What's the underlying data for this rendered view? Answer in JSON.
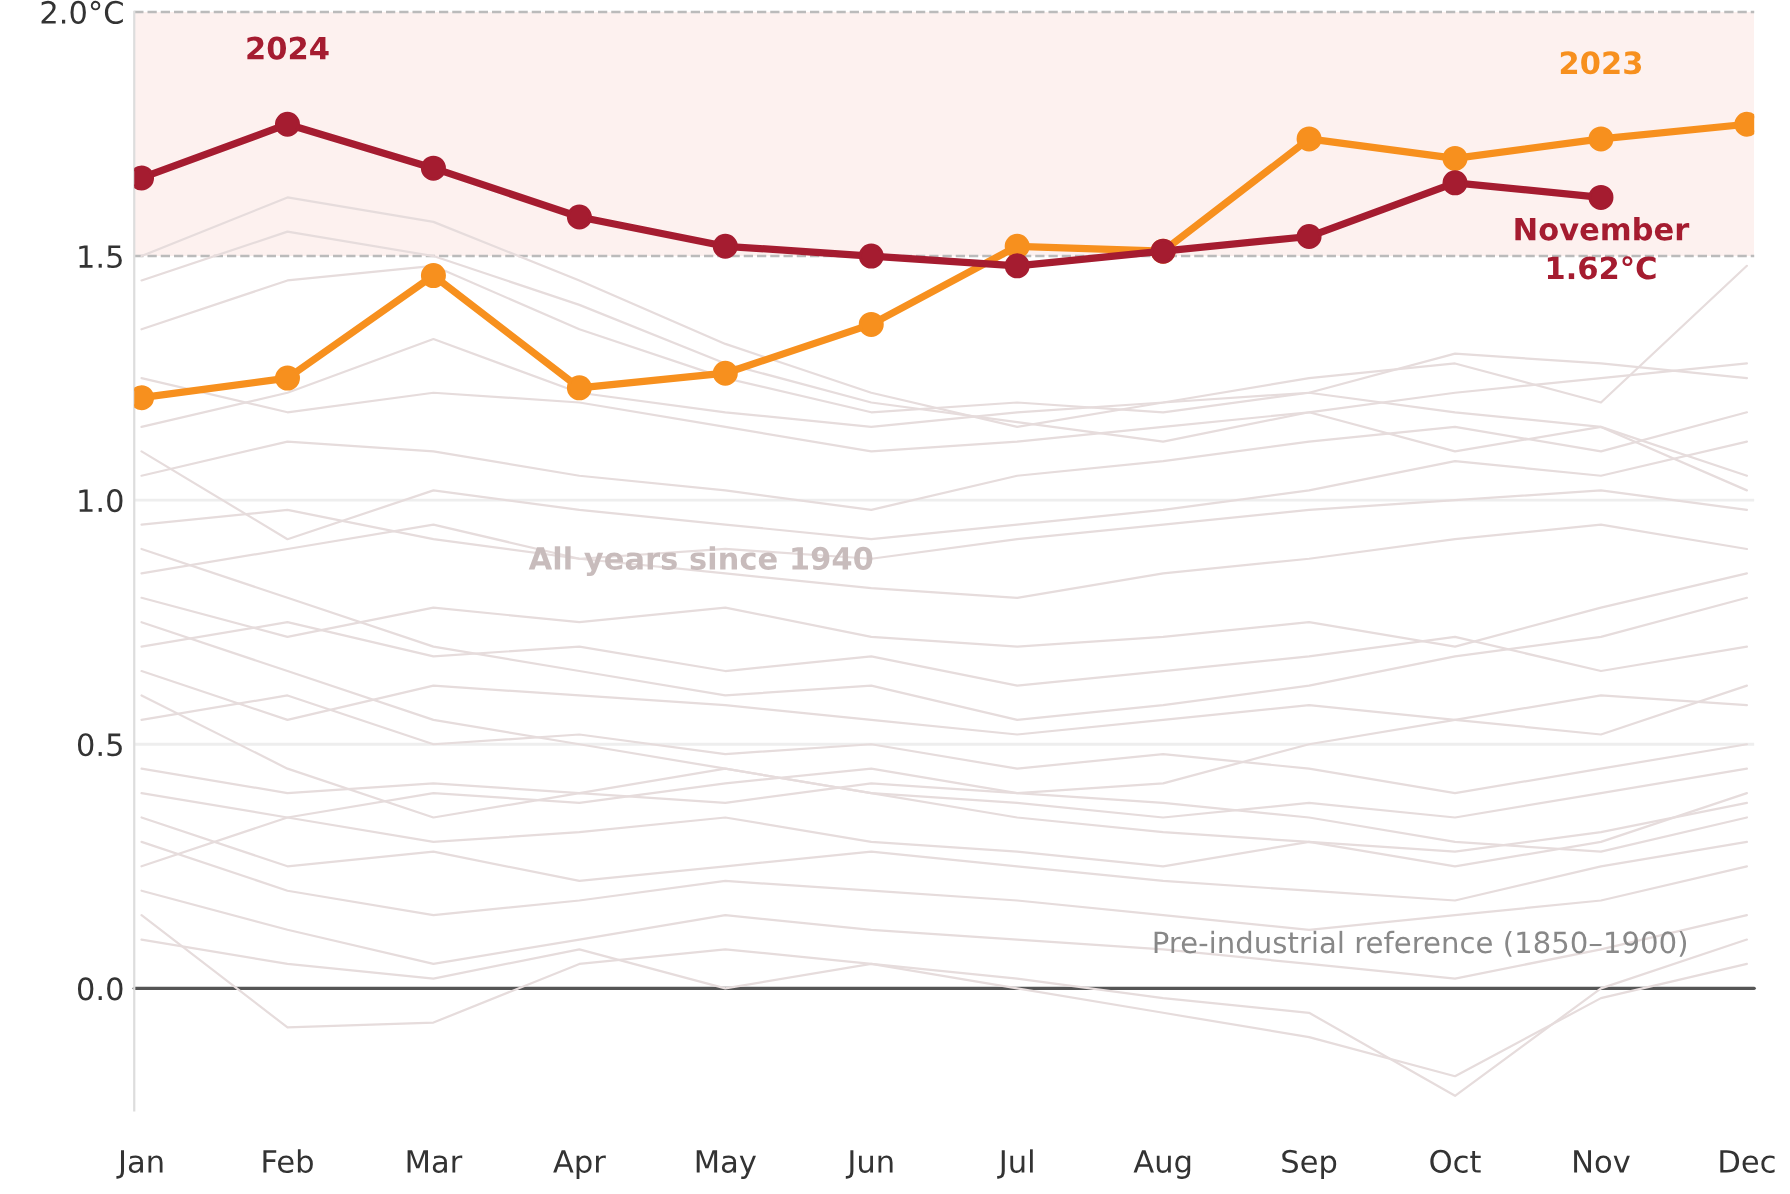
{
  "chart_data": {
    "type": "line",
    "categories": [
      "Jan",
      "Feb",
      "Mar",
      "Apr",
      "May",
      "Jun",
      "Jul",
      "Aug",
      "Sep",
      "Oct",
      "Nov",
      "Dec"
    ],
    "ylim": [
      -0.25,
      2.0
    ],
    "yticks": [
      {
        "value": 0.0,
        "label": "0.0"
      },
      {
        "value": 0.5,
        "label": "0.5"
      },
      {
        "value": 1.0,
        "label": "1.0"
      },
      {
        "value": 1.5,
        "label": "1.5"
      },
      {
        "value": 2.0,
        "label": "2.0°C"
      }
    ],
    "grid": "y",
    "annotations": [
      "All years since 1940"
    ],
    "bands": [
      {
        "axis": "y",
        "from": 1.5,
        "to": 2.0,
        "color": "#fdf1ef"
      }
    ],
    "ref_lines": [
      {
        "axis": "y",
        "value": 2.0,
        "color": "#bbbbbb",
        "line_style": "dashed"
      },
      {
        "axis": "y",
        "value": 1.5,
        "color": "#bbbbbb",
        "line_style": "dashed"
      },
      {
        "axis": "y",
        "value": 0.0,
        "color": "#555555",
        "line_style": "solid",
        "label": "Pre-industrial reference (1850–1900)"
      }
    ],
    "series": [
      {
        "color": "#e6dcdc",
        "marker": "none",
        "values": [
          1.5,
          1.62,
          1.57,
          1.45,
          1.32,
          1.22,
          1.15,
          1.2,
          1.22,
          1.18,
          1.15,
          1.05
        ]
      },
      {
        "color": "#e6dcdc",
        "marker": "none",
        "values": [
          1.45,
          1.55,
          1.5,
          1.4,
          1.28,
          1.2,
          1.16,
          1.12,
          1.18,
          1.1,
          1.15,
          1.02
        ]
      },
      {
        "color": "#e6dcdc",
        "marker": "none",
        "values": [
          1.35,
          1.45,
          1.48,
          1.35,
          1.25,
          1.18,
          1.2,
          1.18,
          1.22,
          1.3,
          1.28,
          1.25
        ]
      },
      {
        "color": "#e6dcdc",
        "marker": "none",
        "values": [
          1.15,
          1.22,
          1.33,
          1.22,
          1.18,
          1.15,
          1.18,
          1.2,
          1.25,
          1.28,
          1.2,
          1.48
        ]
      },
      {
        "color": "#e6dcdc",
        "marker": "none",
        "values": [
          1.25,
          1.18,
          1.22,
          1.2,
          1.15,
          1.1,
          1.12,
          1.15,
          1.18,
          1.22,
          1.25,
          1.28
        ]
      },
      {
        "color": "#e6dcdc",
        "marker": "none",
        "values": [
          1.05,
          1.12,
          1.1,
          1.05,
          1.02,
          0.98,
          1.05,
          1.08,
          1.12,
          1.15,
          1.1,
          1.18
        ]
      },
      {
        "color": "#e6dcdc",
        "marker": "none",
        "values": [
          1.1,
          0.92,
          1.02,
          0.98,
          0.95,
          0.92,
          0.95,
          0.98,
          1.02,
          1.08,
          1.05,
          1.12
        ]
      },
      {
        "color": "#e6dcdc",
        "marker": "none",
        "values": [
          0.95,
          0.98,
          0.92,
          0.88,
          0.9,
          0.88,
          0.92,
          0.95,
          0.98,
          1.0,
          1.02,
          0.98
        ]
      },
      {
        "color": "#e6dcdc",
        "marker": "none",
        "values": [
          0.85,
          0.9,
          0.95,
          0.88,
          0.85,
          0.82,
          0.8,
          0.85,
          0.88,
          0.92,
          0.95,
          0.9
        ]
      },
      {
        "color": "#e6dcdc",
        "marker": "none",
        "values": [
          0.8,
          0.72,
          0.78,
          0.75,
          0.78,
          0.72,
          0.7,
          0.72,
          0.75,
          0.7,
          0.78,
          0.85
        ]
      },
      {
        "color": "#e6dcdc",
        "marker": "none",
        "values": [
          0.7,
          0.75,
          0.68,
          0.7,
          0.65,
          0.68,
          0.62,
          0.65,
          0.68,
          0.72,
          0.65,
          0.7
        ]
      },
      {
        "color": "#e6dcdc",
        "marker": "none",
        "values": [
          0.65,
          0.55,
          0.62,
          0.6,
          0.58,
          0.55,
          0.52,
          0.55,
          0.58,
          0.55,
          0.52,
          0.62
        ]
      },
      {
        "color": "#e6dcdc",
        "marker": "none",
        "values": [
          0.55,
          0.6,
          0.5,
          0.52,
          0.48,
          0.5,
          0.45,
          0.48,
          0.45,
          0.4,
          0.45,
          0.5
        ]
      },
      {
        "color": "#e6dcdc",
        "marker": "none",
        "values": [
          0.45,
          0.4,
          0.42,
          0.4,
          0.45,
          0.4,
          0.38,
          0.35,
          0.38,
          0.35,
          0.4,
          0.45
        ]
      },
      {
        "color": "#e6dcdc",
        "marker": "none",
        "values": [
          0.4,
          0.35,
          0.3,
          0.32,
          0.35,
          0.3,
          0.28,
          0.25,
          0.3,
          0.28,
          0.32,
          0.38
        ]
      },
      {
        "color": "#e6dcdc",
        "marker": "none",
        "values": [
          0.35,
          0.25,
          0.28,
          0.22,
          0.25,
          0.28,
          0.25,
          0.22,
          0.2,
          0.18,
          0.25,
          0.3
        ]
      },
      {
        "color": "#e6dcdc",
        "marker": "none",
        "values": [
          0.3,
          0.2,
          0.15,
          0.18,
          0.22,
          0.2,
          0.18,
          0.15,
          0.12,
          0.15,
          0.18,
          0.25
        ]
      },
      {
        "color": "#e6dcdc",
        "marker": "none",
        "values": [
          0.2,
          0.12,
          0.05,
          0.1,
          0.15,
          0.12,
          0.1,
          0.08,
          0.05,
          0.02,
          0.08,
          0.15
        ]
      },
      {
        "color": "#e6dcdc",
        "marker": "none",
        "values": [
          0.15,
          -0.08,
          -0.07,
          0.05,
          0.08,
          0.05,
          0.02,
          -0.02,
          -0.05,
          -0.22,
          0.0,
          0.1
        ]
      },
      {
        "color": "#e6dcdc",
        "marker": "none",
        "values": [
          0.1,
          0.05,
          0.02,
          0.08,
          0.0,
          0.05,
          0.0,
          -0.05,
          -0.1,
          -0.18,
          -0.02,
          0.05
        ]
      },
      {
        "color": "#e6dcdc",
        "marker": "none",
        "values": [
          0.6,
          0.45,
          0.35,
          0.4,
          0.38,
          0.42,
          0.4,
          0.38,
          0.35,
          0.3,
          0.28,
          0.35
        ]
      },
      {
        "color": "#e6dcdc",
        "marker": "none",
        "values": [
          0.75,
          0.65,
          0.55,
          0.5,
          0.45,
          0.4,
          0.35,
          0.32,
          0.3,
          0.25,
          0.3,
          0.4
        ]
      },
      {
        "color": "#e6dcdc",
        "marker": "none",
        "values": [
          0.25,
          0.35,
          0.4,
          0.38,
          0.42,
          0.45,
          0.4,
          0.42,
          0.5,
          0.55,
          0.6,
          0.58
        ]
      },
      {
        "color": "#e6dcdc",
        "marker": "none",
        "values": [
          0.9,
          0.8,
          0.7,
          0.65,
          0.6,
          0.62,
          0.55,
          0.58,
          0.62,
          0.68,
          0.72,
          0.8
        ]
      },
      {
        "name": "2023",
        "color": "#f7901e",
        "marker": "circle",
        "values": [
          1.21,
          1.25,
          1.46,
          1.23,
          1.26,
          1.36,
          1.52,
          1.51,
          1.74,
          1.7,
          1.74,
          1.77
        ]
      },
      {
        "name": "2024",
        "color": "#a51c30",
        "marker": "circle",
        "values": [
          1.66,
          1.77,
          1.68,
          1.58,
          1.52,
          1.5,
          1.48,
          1.51,
          1.54,
          1.65,
          1.62,
          null
        ],
        "value_labels": [
          null,
          null,
          null,
          null,
          null,
          null,
          null,
          null,
          null,
          null,
          "November\n1.62°C",
          null
        ]
      }
    ]
  }
}
